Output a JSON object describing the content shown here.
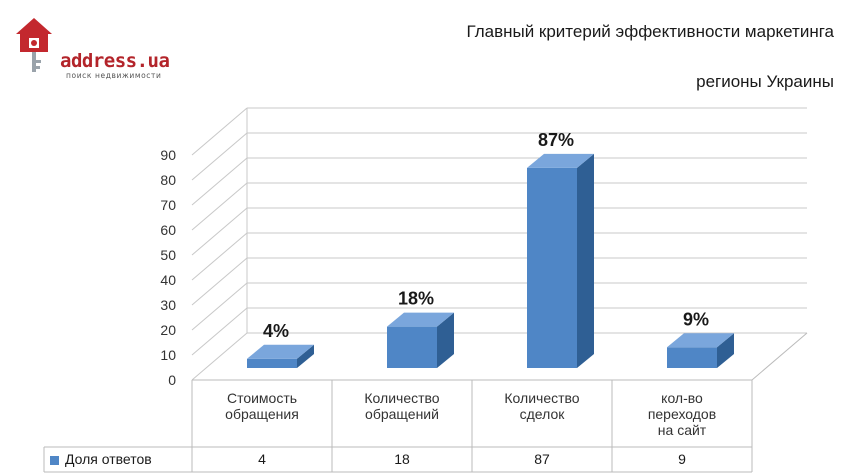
{
  "logo": {
    "text": "address.ua",
    "tagline": "поиск недвижимости"
  },
  "chart_data": {
    "type": "bar",
    "title": "Главный критерий эффективности маркетинга",
    "subtitle": "регионы Украины",
    "categories": [
      "Стоимость обращения",
      "Количество обращений",
      "Количество сделок",
      "кол-во переходов на сайт"
    ],
    "category_lines": [
      [
        "Стоимость",
        "обращения"
      ],
      [
        "Количество",
        "обращений"
      ],
      [
        "Количество",
        "сделок"
      ],
      [
        "кол-во",
        "переходов",
        "на сайт"
      ]
    ],
    "series": [
      {
        "name": "Доля ответов",
        "values": [
          4,
          18,
          87,
          9
        ]
      }
    ],
    "data_labels": [
      "4%",
      "18%",
      "87%",
      "9%"
    ],
    "table_values": [
      "4",
      "18",
      "87",
      "9"
    ],
    "yticks": [
      "0",
      "10",
      "20",
      "30",
      "40",
      "50",
      "60",
      "70",
      "80",
      "90"
    ],
    "ylim": [
      0,
      90
    ],
    "grid": true,
    "bar_color": "#4f86c6",
    "legend": "data-table"
  }
}
